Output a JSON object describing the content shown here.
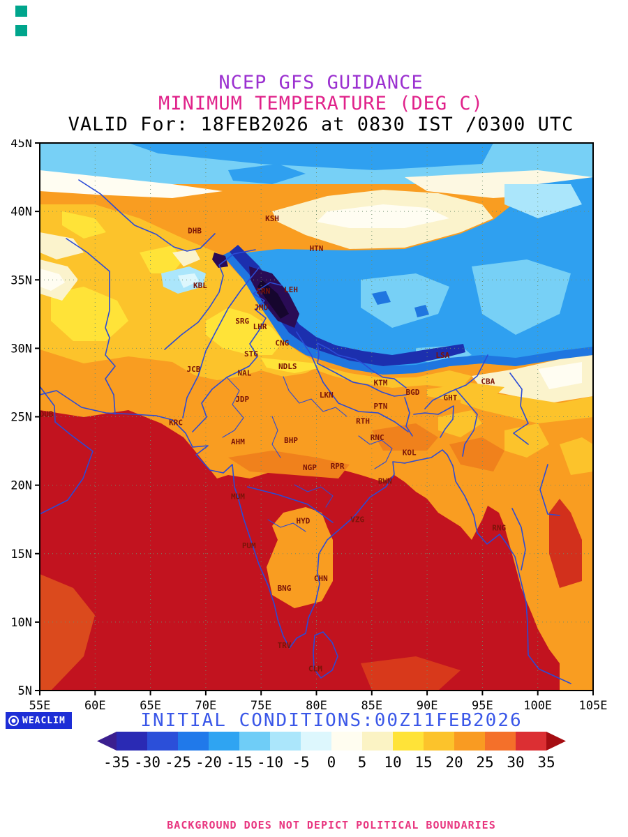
{
  "page": {
    "background": "#ffffff",
    "deco_color": "#00a58c"
  },
  "header": {
    "line1": "NCEP GFS GUIDANCE",
    "line2": "MINIMUM TEMPERATURE (DEG C)",
    "line3": "VALID For: 18FEB2026 at 0830 IST /0300 UTC"
  },
  "footer": {
    "logo_text": "WEACLIM",
    "initial_conditions": "INITIAL CONDITIONS:00Z11FEB2026",
    "disclaimer": "BACKGROUND DOES NOT DEPICT POLITICAL BOUNDARIES"
  },
  "chart_data": {
    "type": "heatmap",
    "subtype": "filled-contour-weather-map",
    "title": "NCEP GFS GUIDANCE",
    "variable": "MINIMUM TEMPERATURE (DEG C)",
    "valid_time": "18FEB2026 at 0830 IST /0300 UTC",
    "initial_conditions": "00Z11FEB2026",
    "source_label": "WEACLIM",
    "lon_range_deg_e": [
      55,
      105
    ],
    "lat_range_deg_n": [
      5,
      45
    ],
    "lon_ticks": [
      "55E",
      "60E",
      "65E",
      "70E",
      "75E",
      "80E",
      "85E",
      "90E",
      "95E",
      "100E",
      "105E"
    ],
    "lat_ticks": [
      "5N",
      "10N",
      "15N",
      "20N",
      "25N",
      "30N",
      "35N",
      "40N",
      "45N"
    ],
    "grid": "dotted, every 5 degrees",
    "legend_position": "bottom",
    "colorbar": {
      "unit": "DEG C",
      "tick_labels": [
        "-35",
        "-30",
        "-25",
        "-20",
        "-15",
        "-10",
        "-5",
        "0",
        "5",
        "10",
        "15",
        "20",
        "25",
        "30",
        "35"
      ],
      "colors": [
        "#3b1f8f",
        "#2a2ab4",
        "#2b4fd9",
        "#2079ea",
        "#2fa4f2",
        "#6fcdf7",
        "#abe6fb",
        "#ddf7fd",
        "#fffdf0",
        "#fbf3c4",
        "#ffe338",
        "#fcc32b",
        "#f99b22",
        "#f4702a",
        "#dc2f33",
        "#a50d12"
      ]
    },
    "regions_approx_min_temp_c": [
      {
        "region": "Karakoram / western Himalaya core (74-78E, 33-36N)",
        "value": "-35 to -20"
      },
      {
        "region": "Himalayan arc (72-93E along 28-36N)",
        "value": "-20 to -10"
      },
      {
        "region": "Tibetan plateau (78-105E, 28-42N)",
        "value": "-15 to -5"
      },
      {
        "region": "Tarim basin belt (75-90E, 37-41N)",
        "value": "0 to 5"
      },
      {
        "region": "Hindu Kush / Kabul area (66-70E, 34-36N)",
        "value": "-10 to -5"
      },
      {
        "region": "Afghanistan / Pakistan / NW India",
        "value": "5 to 15"
      },
      {
        "region": "Indo-Gangetic plains",
        "value": "10 to 20"
      },
      {
        "region": "Central India",
        "value": "15 to 25"
      },
      {
        "region": "Peninsular India, Arabian Sea, Bay of Bengal",
        "value": "25 to 35"
      },
      {
        "region": "Northeast India / Brahmaputra valley",
        "value": "10 to 20"
      }
    ],
    "stations": [
      {
        "label": "KSH",
        "lon": 76.0,
        "lat": 39.5
      },
      {
        "label": "HTN",
        "lon": 80.0,
        "lat": 37.3
      },
      {
        "label": "DHB",
        "lon": 69.0,
        "lat": 38.6
      },
      {
        "label": "KBL",
        "lon": 69.5,
        "lat": 34.6
      },
      {
        "label": "SRN",
        "lon": 75.2,
        "lat": 34.2
      },
      {
        "label": "LEH",
        "lon": 77.7,
        "lat": 34.3
      },
      {
        "label": "JMU",
        "lon": 75.0,
        "lat": 33.0
      },
      {
        "label": "SRG",
        "lon": 73.3,
        "lat": 32.0
      },
      {
        "label": "LHR",
        "lon": 74.9,
        "lat": 31.6
      },
      {
        "label": "CNG",
        "lon": 76.9,
        "lat": 30.4
      },
      {
        "label": "STG",
        "lon": 74.1,
        "lat": 29.6
      },
      {
        "label": "NDLS",
        "lon": 77.4,
        "lat": 28.7
      },
      {
        "label": "NAL",
        "lon": 73.5,
        "lat": 28.2
      },
      {
        "label": "JCB",
        "lon": 68.9,
        "lat": 28.5
      },
      {
        "label": "JDP",
        "lon": 73.3,
        "lat": 26.3
      },
      {
        "label": "LKN",
        "lon": 80.9,
        "lat": 26.6
      },
      {
        "label": "KTM",
        "lon": 85.8,
        "lat": 27.5
      },
      {
        "label": "BGD",
        "lon": 88.7,
        "lat": 26.8
      },
      {
        "label": "GHT",
        "lon": 92.1,
        "lat": 26.4
      },
      {
        "label": "CBA",
        "lon": 95.5,
        "lat": 27.6
      },
      {
        "label": "LSA",
        "lon": 91.4,
        "lat": 29.5
      },
      {
        "label": "DUB",
        "lon": 55.6,
        "lat": 25.2
      },
      {
        "label": "KRC",
        "lon": 67.3,
        "lat": 24.6
      },
      {
        "label": "AHM",
        "lon": 72.9,
        "lat": 23.2
      },
      {
        "label": "BHP",
        "lon": 77.7,
        "lat": 23.3
      },
      {
        "label": "RTH",
        "lon": 84.2,
        "lat": 24.7
      },
      {
        "label": "PTN",
        "lon": 85.8,
        "lat": 25.8
      },
      {
        "label": "RNC",
        "lon": 85.5,
        "lat": 23.5
      },
      {
        "label": "KOL",
        "lon": 88.4,
        "lat": 22.4
      },
      {
        "label": "NGP",
        "lon": 79.4,
        "lat": 21.3
      },
      {
        "label": "RPR",
        "lon": 81.9,
        "lat": 21.4
      },
      {
        "label": "BWN",
        "lon": 86.2,
        "lat": 20.3
      },
      {
        "label": "MUM",
        "lon": 72.9,
        "lat": 19.2
      },
      {
        "label": "HYD",
        "lon": 78.8,
        "lat": 17.4
      },
      {
        "label": "VZG",
        "lon": 83.7,
        "lat": 17.5
      },
      {
        "label": "RNG",
        "lon": 96.5,
        "lat": 16.9
      },
      {
        "label": "PUM",
        "lon": 73.9,
        "lat": 15.6
      },
      {
        "label": "BNG",
        "lon": 77.1,
        "lat": 12.5
      },
      {
        "label": "CHN",
        "lon": 80.4,
        "lat": 13.2
      },
      {
        "label": "TRV",
        "lon": 77.1,
        "lat": 8.3
      },
      {
        "label": "CLM",
        "lon": 79.9,
        "lat": 6.6
      }
    ]
  }
}
